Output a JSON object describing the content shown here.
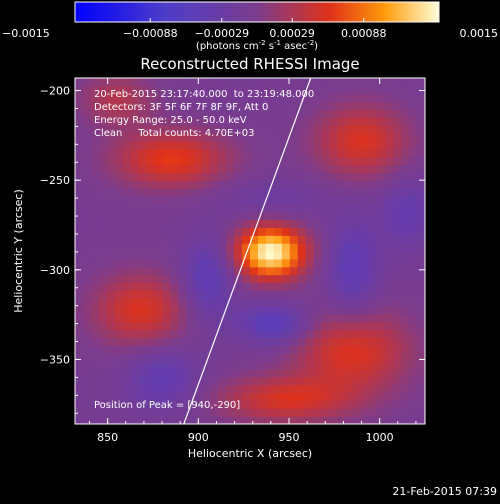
{
  "chart_data": {
    "type": "heatmap",
    "title": "Reconstructed RHESSI Image",
    "xlabel": "Heliocentric X (arcsec)",
    "ylabel": "Heliocentric Y (arcsec)",
    "xlim": [
      832,
      1025
    ],
    "ylim": [
      -386,
      -193
    ],
    "x_ticks": [
      850,
      900,
      950,
      1000
    ],
    "y_ticks": [
      -200,
      -250,
      -300,
      -350
    ],
    "grid": false,
    "colorbar": {
      "location": "top",
      "range": [
        -0.0015,
        0.0015
      ],
      "ticks": [
        "-0.0015",
        "-0.00088",
        "-0.00029",
        "0.00029",
        "0.00088",
        "0.0015"
      ],
      "unit_label": "(photons cm",
      "unit_parts": [
        "-2",
        " s",
        "-1",
        " asec",
        "-2",
        ")"
      ]
    },
    "annotations": [
      "20-Feb-2015 23:17:40.000  to 23:19:48.000",
      "Detectors: 3F 5F 6F 7F 8F 9F, Att 0",
      "Energy Range: 25.0 - 50.0 keV",
      "Clean     Total counts: 4.70E+03"
    ],
    "peak_label": "Position of Peak = [940,-290]",
    "peak": [
      940,
      -290
    ],
    "limb_line": [
      [
        892,
        -386
      ],
      [
        962,
        -193
      ]
    ],
    "sources": [
      {
        "x": 940,
        "y": -290,
        "sx": 13,
        "sy": 10,
        "amp": 1.0
      },
      {
        "x": 885,
        "y": -238,
        "sx": 22,
        "sy": 11,
        "amp": 0.45
      },
      {
        "x": 990,
        "y": -228,
        "sx": 18,
        "sy": 14,
        "amp": 0.4
      },
      {
        "x": 985,
        "y": -345,
        "sx": 22,
        "sy": 16,
        "amp": 0.42
      },
      {
        "x": 948,
        "y": -372,
        "sx": 26,
        "sy": 9,
        "amp": 0.38
      },
      {
        "x": 868,
        "y": -322,
        "sx": 18,
        "sy": 14,
        "amp": 0.4
      },
      {
        "x": 855,
        "y": -205,
        "sx": 14,
        "sy": 10,
        "amp": 0.25
      },
      {
        "x": 940,
        "y": -260,
        "sx": 22,
        "sy": 8,
        "amp": -0.12
      },
      {
        "x": 942,
        "y": -330,
        "sx": 14,
        "sy": 8,
        "amp": -0.35
      },
      {
        "x": 905,
        "y": -305,
        "sx": 10,
        "sy": 16,
        "amp": -0.3
      },
      {
        "x": 985,
        "y": -300,
        "sx": 10,
        "sy": 20,
        "amp": -0.28
      },
      {
        "x": 880,
        "y": -360,
        "sx": 14,
        "sy": 12,
        "amp": -0.25
      },
      {
        "x": 1015,
        "y": -268,
        "sx": 10,
        "sy": 14,
        "amp": -0.22
      }
    ]
  },
  "footer": {
    "timestamp": "21-Feb-2015 07:39"
  }
}
